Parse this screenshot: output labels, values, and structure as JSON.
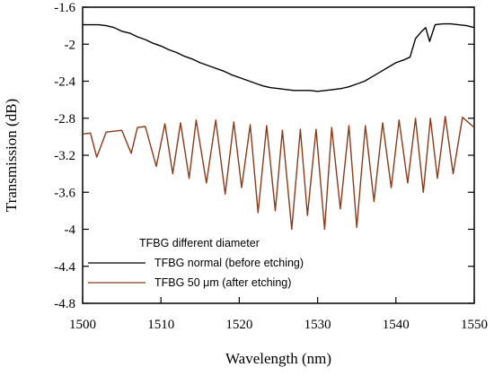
{
  "chart_data": {
    "type": "line",
    "xlabel": "Wavelength (nm)",
    "ylabel": "Transmission (dB)",
    "xlim": [
      1500,
      1550
    ],
    "ylim": [
      -4.8,
      -1.6
    ],
    "xticks": [
      "1500",
      "1510",
      "1520",
      "1530",
      "1540",
      "1550"
    ],
    "yticks": [
      "-1.6",
      "-2",
      "-2.4",
      "-2.8",
      "-3.2",
      "-3.6",
      "-4",
      "-4.4",
      "-4.8"
    ],
    "legend": {
      "title": "TFBG different diameter",
      "placement": "lower-left"
    },
    "series": [
      {
        "name": "TFBG normal (before etching)",
        "color": "#000000",
        "x": [
          1500.0,
          1501.0,
          1502.0,
          1503.0,
          1504.0,
          1505.0,
          1506.0,
          1507.0,
          1508.0,
          1509.0,
          1510.0,
          1511.0,
          1512.0,
          1513.0,
          1514.0,
          1515.0,
          1516.0,
          1517.0,
          1518.0,
          1519.0,
          1520.0,
          1521.0,
          1522.0,
          1523.0,
          1524.0,
          1525.0,
          1526.0,
          1527.0,
          1528.0,
          1529.0,
          1530.0,
          1531.0,
          1532.0,
          1533.0,
          1534.0,
          1535.0,
          1536.0,
          1537.0,
          1538.0,
          1539.0,
          1540.0,
          1541.0,
          1541.8,
          1542.5,
          1543.2,
          1543.8,
          1544.3,
          1545.0,
          1546.0,
          1547.0,
          1548.0,
          1549.0,
          1550.0
        ],
        "y": [
          -1.79,
          -1.79,
          -1.79,
          -1.8,
          -1.82,
          -1.86,
          -1.88,
          -1.92,
          -1.95,
          -1.99,
          -2.02,
          -2.06,
          -2.09,
          -2.13,
          -2.16,
          -2.2,
          -2.23,
          -2.26,
          -2.29,
          -2.33,
          -2.36,
          -2.39,
          -2.42,
          -2.45,
          -2.47,
          -2.48,
          -2.49,
          -2.5,
          -2.5,
          -2.5,
          -2.51,
          -2.5,
          -2.49,
          -2.48,
          -2.46,
          -2.43,
          -2.4,
          -2.35,
          -2.3,
          -2.25,
          -2.2,
          -2.17,
          -2.14,
          -1.94,
          -1.87,
          -1.82,
          -1.97,
          -1.79,
          -1.78,
          -1.78,
          -1.79,
          -1.8,
          -1.82
        ]
      },
      {
        "name": "TFBG 50 μm (after etching)",
        "color": "#8b3a1a",
        "x": [
          1500.0,
          1501.0,
          1501.8,
          1503.0,
          1504.0,
          1505.0,
          1506.2,
          1507.0,
          1508.0,
          1509.4,
          1510.5,
          1511.5,
          1512.5,
          1513.6,
          1514.5,
          1515.8,
          1517.0,
          1518.2,
          1519.3,
          1520.3,
          1521.4,
          1522.4,
          1523.5,
          1524.6,
          1525.5,
          1526.7,
          1527.8,
          1528.7,
          1529.8,
          1530.9,
          1531.8,
          1532.9,
          1534.0,
          1535.0,
          1536.1,
          1537.2,
          1538.3,
          1539.4,
          1540.4,
          1541.5,
          1542.5,
          1543.5,
          1544.4,
          1545.3,
          1546.3,
          1547.3,
          1548.5,
          1550.0
        ],
        "y": [
          -2.97,
          -2.96,
          -3.22,
          -2.95,
          -2.94,
          -2.93,
          -3.18,
          -2.9,
          -2.89,
          -3.32,
          -2.86,
          -3.4,
          -2.85,
          -3.45,
          -2.82,
          -3.5,
          -2.82,
          -3.62,
          -2.84,
          -3.55,
          -2.87,
          -3.82,
          -2.88,
          -3.8,
          -2.93,
          -4.0,
          -2.92,
          -3.85,
          -2.92,
          -4.0,
          -2.9,
          -3.78,
          -2.88,
          -3.98,
          -2.88,
          -3.7,
          -2.85,
          -3.55,
          -2.82,
          -3.5,
          -2.8,
          -3.6,
          -2.8,
          -3.45,
          -2.78,
          -3.4,
          -2.79,
          -2.9
        ]
      }
    ]
  }
}
